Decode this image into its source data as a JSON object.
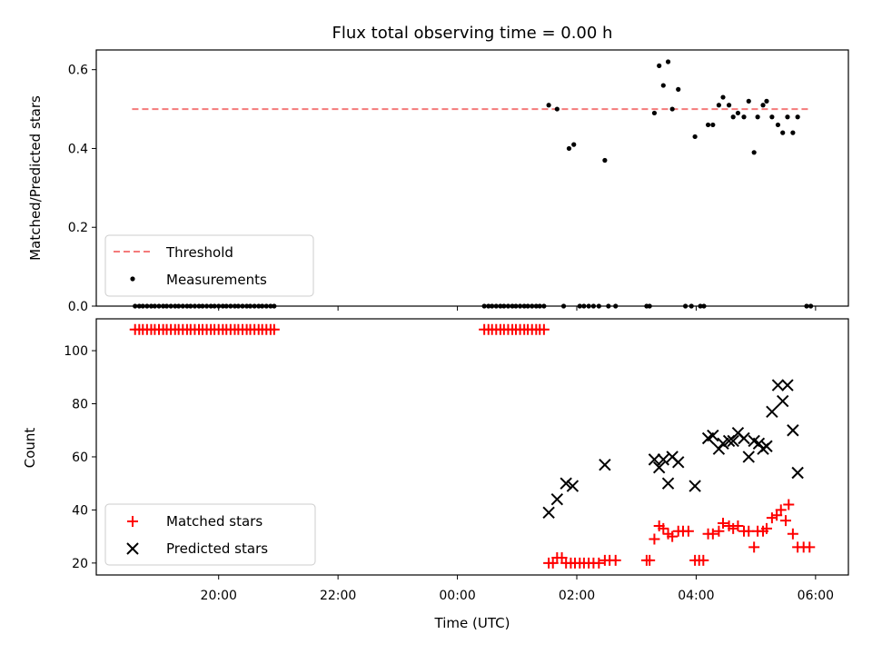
{
  "colors": {
    "threshold": "#f47a7a",
    "measurements": "#000000",
    "matched": "#ff0000",
    "predicted": "#000000"
  },
  "chart_data": [
    {
      "type": "scatter",
      "title": "Flux total observing time = 0.00 h",
      "xlabel": "",
      "ylabel": "Matched/Predicted stars",
      "ylim": [
        0,
        0.65
      ],
      "yticks": [
        "0.0",
        "0.2",
        "0.4",
        "0.6"
      ],
      "xlim_hours": [
        17.95,
        30.55
      ],
      "legend_position": "lower-left",
      "threshold": {
        "name": "Threshold",
        "y": 0.5,
        "x_range_hours": [
          18.55,
          29.9
        ]
      },
      "series": [
        {
          "name": "Measurements",
          "points": [
            [
              18.6,
              0
            ],
            [
              18.67,
              0
            ],
            [
              18.73,
              0
            ],
            [
              18.8,
              0
            ],
            [
              18.87,
              0
            ],
            [
              18.93,
              0
            ],
            [
              19.0,
              0
            ],
            [
              19.07,
              0
            ],
            [
              19.13,
              0
            ],
            [
              19.2,
              0
            ],
            [
              19.27,
              0
            ],
            [
              19.33,
              0
            ],
            [
              19.4,
              0
            ],
            [
              19.47,
              0
            ],
            [
              19.53,
              0
            ],
            [
              19.6,
              0
            ],
            [
              19.67,
              0
            ],
            [
              19.73,
              0
            ],
            [
              19.8,
              0
            ],
            [
              19.87,
              0
            ],
            [
              19.93,
              0
            ],
            [
              20.0,
              0
            ],
            [
              20.07,
              0
            ],
            [
              20.13,
              0
            ],
            [
              20.2,
              0
            ],
            [
              20.27,
              0
            ],
            [
              20.33,
              0
            ],
            [
              20.4,
              0
            ],
            [
              20.47,
              0
            ],
            [
              20.53,
              0
            ],
            [
              20.6,
              0
            ],
            [
              20.67,
              0
            ],
            [
              20.73,
              0
            ],
            [
              20.8,
              0
            ],
            [
              20.87,
              0
            ],
            [
              20.93,
              0
            ],
            [
              24.45,
              0
            ],
            [
              24.52,
              0
            ],
            [
              24.58,
              0
            ],
            [
              24.65,
              0
            ],
            [
              24.72,
              0
            ],
            [
              24.78,
              0
            ],
            [
              24.85,
              0
            ],
            [
              24.92,
              0
            ],
            [
              24.98,
              0
            ],
            [
              25.05,
              0
            ],
            [
              25.12,
              0
            ],
            [
              25.18,
              0
            ],
            [
              25.25,
              0
            ],
            [
              25.32,
              0
            ],
            [
              25.38,
              0
            ],
            [
              25.45,
              0
            ],
            [
              25.53,
              0.51
            ],
            [
              25.67,
              0.5
            ],
            [
              25.78,
              0
            ],
            [
              25.87,
              0.4
            ],
            [
              25.95,
              0.41
            ],
            [
              26.05,
              0
            ],
            [
              26.12,
              0
            ],
            [
              26.2,
              0
            ],
            [
              26.28,
              0
            ],
            [
              26.37,
              0
            ],
            [
              26.47,
              0.37
            ],
            [
              26.53,
              0
            ],
            [
              26.65,
              0
            ],
            [
              27.17,
              0
            ],
            [
              27.22,
              0
            ],
            [
              27.3,
              0.49
            ],
            [
              27.38,
              0.61
            ],
            [
              27.45,
              0.56
            ],
            [
              27.53,
              0.62
            ],
            [
              27.6,
              0.5
            ],
            [
              27.7,
              0.55
            ],
            [
              27.82,
              0
            ],
            [
              27.92,
              0
            ],
            [
              27.98,
              0.43
            ],
            [
              28.07,
              0
            ],
            [
              28.13,
              0
            ],
            [
              28.2,
              0.46
            ],
            [
              28.28,
              0.46
            ],
            [
              28.38,
              0.51
            ],
            [
              28.45,
              0.53
            ],
            [
              28.55,
              0.51
            ],
            [
              28.62,
              0.48
            ],
            [
              28.7,
              0.49
            ],
            [
              28.8,
              0.48
            ],
            [
              28.88,
              0.52
            ],
            [
              28.97,
              0.39
            ],
            [
              29.03,
              0.48
            ],
            [
              29.12,
              0.51
            ],
            [
              29.18,
              0.52
            ],
            [
              29.27,
              0.48
            ],
            [
              29.37,
              0.46
            ],
            [
              29.45,
              0.44
            ],
            [
              29.53,
              0.48
            ],
            [
              29.62,
              0.44
            ],
            [
              29.7,
              0.48
            ],
            [
              29.85,
              0
            ],
            [
              29.92,
              0
            ]
          ]
        }
      ]
    },
    {
      "type": "scatter",
      "title": "",
      "xlabel": "Time (UTC)",
      "ylabel": "Count",
      "ylim": [
        15.5,
        112
      ],
      "yticks": [
        "20",
        "40",
        "60",
        "80",
        "100"
      ],
      "xticks": [
        "20:00",
        "22:00",
        "00:00",
        "02:00",
        "04:00",
        "06:00"
      ],
      "xtick_hours": [
        20,
        22,
        24,
        26,
        28,
        30
      ],
      "xlim_hours": [
        17.95,
        30.55
      ],
      "legend_position": "lower-left",
      "series": [
        {
          "name": "Matched stars",
          "marker": "+",
          "points": [
            [
              18.6,
              108
            ],
            [
              18.67,
              108
            ],
            [
              18.73,
              108
            ],
            [
              18.8,
              108
            ],
            [
              18.87,
              108
            ],
            [
              18.93,
              108
            ],
            [
              19.0,
              108
            ],
            [
              19.07,
              108
            ],
            [
              19.13,
              108
            ],
            [
              19.2,
              108
            ],
            [
              19.27,
              108
            ],
            [
              19.33,
              108
            ],
            [
              19.4,
              108
            ],
            [
              19.47,
              108
            ],
            [
              19.53,
              108
            ],
            [
              19.6,
              108
            ],
            [
              19.67,
              108
            ],
            [
              19.73,
              108
            ],
            [
              19.8,
              108
            ],
            [
              19.87,
              108
            ],
            [
              19.93,
              108
            ],
            [
              20.0,
              108
            ],
            [
              20.07,
              108
            ],
            [
              20.13,
              108
            ],
            [
              20.2,
              108
            ],
            [
              20.27,
              108
            ],
            [
              20.33,
              108
            ],
            [
              20.4,
              108
            ],
            [
              20.47,
              108
            ],
            [
              20.53,
              108
            ],
            [
              20.6,
              108
            ],
            [
              20.67,
              108
            ],
            [
              20.73,
              108
            ],
            [
              20.8,
              108
            ],
            [
              20.87,
              108
            ],
            [
              20.93,
              108
            ],
            [
              24.45,
              108
            ],
            [
              24.52,
              108
            ],
            [
              24.58,
              108
            ],
            [
              24.65,
              108
            ],
            [
              24.72,
              108
            ],
            [
              24.78,
              108
            ],
            [
              24.85,
              108
            ],
            [
              24.92,
              108
            ],
            [
              24.98,
              108
            ],
            [
              25.05,
              108
            ],
            [
              25.12,
              108
            ],
            [
              25.18,
              108
            ],
            [
              25.25,
              108
            ],
            [
              25.32,
              108
            ],
            [
              25.38,
              108
            ],
            [
              25.45,
              108
            ],
            [
              25.53,
              20
            ],
            [
              25.6,
              20
            ],
            [
              25.67,
              22
            ],
            [
              25.75,
              22
            ],
            [
              25.82,
              20
            ],
            [
              25.9,
              20
            ],
            [
              25.97,
              20
            ],
            [
              26.05,
              20
            ],
            [
              26.12,
              20
            ],
            [
              26.2,
              20
            ],
            [
              26.28,
              20
            ],
            [
              26.37,
              20
            ],
            [
              26.47,
              21
            ],
            [
              26.55,
              21
            ],
            [
              26.65,
              21
            ],
            [
              27.17,
              21
            ],
            [
              27.22,
              21
            ],
            [
              27.3,
              29
            ],
            [
              27.38,
              34
            ],
            [
              27.45,
              33
            ],
            [
              27.53,
              31
            ],
            [
              27.6,
              30
            ],
            [
              27.7,
              32
            ],
            [
              27.78,
              32
            ],
            [
              27.87,
              32
            ],
            [
              27.98,
              21
            ],
            [
              28.05,
              21
            ],
            [
              28.12,
              21
            ],
            [
              28.2,
              31
            ],
            [
              28.28,
              31
            ],
            [
              28.38,
              32
            ],
            [
              28.45,
              35
            ],
            [
              28.55,
              34
            ],
            [
              28.62,
              33
            ],
            [
              28.7,
              34
            ],
            [
              28.8,
              32
            ],
            [
              28.88,
              32
            ],
            [
              28.97,
              26
            ],
            [
              29.03,
              32
            ],
            [
              29.12,
              32
            ],
            [
              29.18,
              33
            ],
            [
              29.27,
              37
            ],
            [
              29.35,
              38
            ],
            [
              29.42,
              40
            ],
            [
              29.5,
              36
            ],
            [
              29.55,
              42
            ],
            [
              29.62,
              31
            ],
            [
              29.7,
              26
            ],
            [
              29.8,
              26
            ],
            [
              29.9,
              26
            ]
          ]
        },
        {
          "name": "Predicted stars",
          "marker": "x",
          "points": [
            [
              25.53,
              39
            ],
            [
              25.67,
              44
            ],
            [
              25.82,
              50
            ],
            [
              25.93,
              49
            ],
            [
              26.47,
              57
            ],
            [
              27.3,
              59
            ],
            [
              27.38,
              56
            ],
            [
              27.45,
              59
            ],
            [
              27.53,
              50
            ],
            [
              27.6,
              60
            ],
            [
              27.7,
              58
            ],
            [
              27.98,
              49
            ],
            [
              28.2,
              67
            ],
            [
              28.28,
              68
            ],
            [
              28.38,
              63
            ],
            [
              28.45,
              65
            ],
            [
              28.55,
              66
            ],
            [
              28.62,
              66
            ],
            [
              28.7,
              69
            ],
            [
              28.8,
              67
            ],
            [
              28.88,
              60
            ],
            [
              28.97,
              66
            ],
            [
              29.05,
              65
            ],
            [
              29.12,
              63
            ],
            [
              29.18,
              64
            ],
            [
              29.27,
              77
            ],
            [
              29.37,
              87
            ],
            [
              29.45,
              81
            ],
            [
              29.53,
              87
            ],
            [
              29.62,
              70
            ],
            [
              29.7,
              54
            ]
          ]
        }
      ]
    }
  ]
}
